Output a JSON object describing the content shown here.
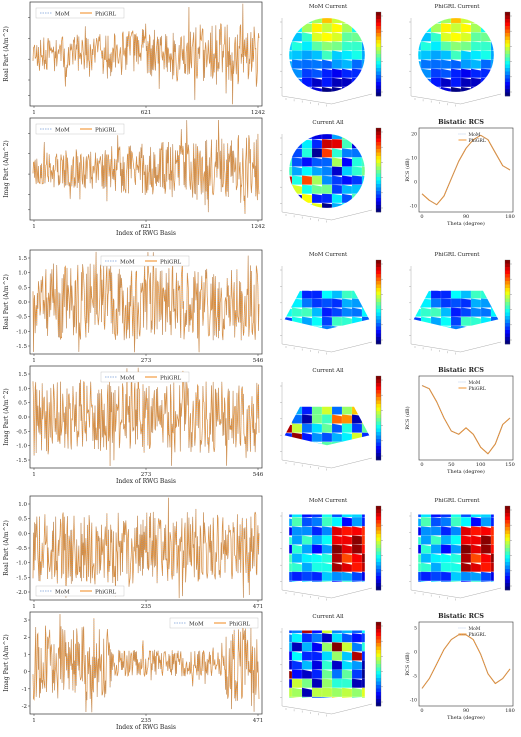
{
  "groups": [
    {
      "name": "sphere",
      "real_panel": {
        "ylabel": "Real Part (A/m^2)",
        "xticks": [
          "1",
          "621",
          "1242"
        ],
        "legend": [
          "MoM",
          "PhiGRL"
        ],
        "legend_pos": "top-left",
        "seed": 11,
        "amp": 0.75,
        "envelope": "growing"
      },
      "imag_panel": {
        "ylabel": "Imag Part (A/m^2)",
        "xticks": [
          "1",
          "621",
          "1242"
        ],
        "xlabel": "Index of RWG Basis",
        "legend": [
          "MoM",
          "PhiGRL"
        ],
        "legend_pos": "top-left",
        "seed": 23,
        "amp": 0.8,
        "envelope": "growing"
      },
      "mom_current_title": "MoM Current",
      "phigrl_current_title": "PhiGRL Current",
      "current_all_title": "Current All",
      "shape": "sphere",
      "rcs": {
        "title": "Bistatic RCS",
        "ylabel": "RCS (dB)",
        "xlabel": "Theta (degree)",
        "xticks": [
          "0",
          "90",
          "180"
        ],
        "yticks": [
          "-10",
          "0",
          "10",
          "20"
        ],
        "legend": [
          "MoM",
          "PhiGRL"
        ],
        "curve": [
          [
            0,
            -5
          ],
          [
            15,
            -8
          ],
          [
            30,
            -10
          ],
          [
            45,
            -6
          ],
          [
            60,
            2
          ],
          [
            75,
            10
          ],
          [
            90,
            16
          ],
          [
            105,
            20
          ],
          [
            120,
            22
          ],
          [
            135,
            20
          ],
          [
            150,
            14
          ],
          [
            165,
            8
          ],
          [
            180,
            6
          ]
        ],
        "ylim": [
          -12,
          24
        ]
      }
    },
    {
      "name": "frustum",
      "real_panel": {
        "ylabel": "Real Part (A/m^2)",
        "yticks": [
          "1.5",
          "1.0",
          "0.5",
          "0.0",
          "-0.5",
          "-1.0",
          "-1.5"
        ],
        "xticks": [
          "1",
          "273",
          "546"
        ],
        "legend": [
          "MoM",
          "PhiGRL"
        ],
        "legend_pos": "top-center",
        "seed": 37,
        "amp": 0.85,
        "envelope": "flat"
      },
      "imag_panel": {
        "ylabel": "Imag Part (A/m^2)",
        "yticks": [
          "1.5",
          "1.0",
          "0.5",
          "0.0",
          "-0.5",
          "-1.0",
          "-1.5"
        ],
        "xticks": [
          "1",
          "273",
          "546"
        ],
        "xlabel": "Index of RWG Basis",
        "legend": [
          "MoM",
          "PhiGRL"
        ],
        "legend_pos": "top-center",
        "seed": 41,
        "amp": 0.8,
        "envelope": "flat"
      },
      "mom_current_title": "MoM Current",
      "phigrl_current_title": "PhiGRL Current",
      "current_all_title": "Current All",
      "shape": "frustum",
      "rcs": {
        "title": "Bistatic RCS",
        "ylabel": "RCS (dB)",
        "xlabel": "Theta (degree)",
        "xticks": [
          "0",
          "50",
          "100",
          "150"
        ],
        "yticks": [],
        "legend": [
          "MoM",
          "PhiGRL"
        ],
        "curve": [
          [
            0,
            6
          ],
          [
            15,
            5.5
          ],
          [
            30,
            3.5
          ],
          [
            45,
            1
          ],
          [
            60,
            -1
          ],
          [
            75,
            -1.5
          ],
          [
            90,
            -0.5
          ],
          [
            105,
            -1.5
          ],
          [
            120,
            -3.5
          ],
          [
            135,
            -4.5
          ],
          [
            150,
            -3
          ],
          [
            165,
            0
          ],
          [
            180,
            1
          ]
        ],
        "ylim": [
          -5,
          7
        ]
      }
    },
    {
      "name": "cube",
      "real_panel": {
        "ylabel": "Real Part (A/m^2)",
        "yticks": [
          "1.0",
          "0.5",
          "0.0",
          "-0.5",
          "-1.0",
          "-1.5",
          "-2.0"
        ],
        "xticks": [
          "1",
          "235",
          "471"
        ],
        "legend": [
          "MoM",
          "PhiGRL"
        ],
        "legend_pos": "bottom-left",
        "seed": 53,
        "amp": 0.8,
        "envelope": "flat"
      },
      "imag_panel": {
        "ylabel": "Imag Part (A/m^2)",
        "yticks": [
          "3",
          "2",
          "1",
          "0",
          "-1",
          "-2"
        ],
        "xticks": [
          "1",
          "235",
          "471"
        ],
        "xlabel": "Index of RWG Basis",
        "legend": [
          "MoM",
          "PhiGRL"
        ],
        "legend_pos": "top-right",
        "seed": 67,
        "amp": 0.85,
        "envelope": "dip"
      },
      "mom_current_title": "MoM Current",
      "phigrl_current_title": "PhiGRL Current",
      "current_all_title": "Current All",
      "shape": "cube",
      "rcs": {
        "title": "Bistatic RCS",
        "ylabel": "RCS (dB)",
        "xlabel": "Theta (degree)",
        "xticks": [
          "0",
          "90",
          "180"
        ],
        "yticks": [
          "-10",
          "-5",
          "0",
          "5"
        ],
        "legend": [
          "MoM",
          "PhiGRL"
        ],
        "curve": [
          [
            0,
            -5
          ],
          [
            15,
            -3
          ],
          [
            30,
            0
          ],
          [
            45,
            3
          ],
          [
            60,
            5
          ],
          [
            75,
            6
          ],
          [
            90,
            6
          ],
          [
            105,
            5
          ],
          [
            120,
            2
          ],
          [
            135,
            -2
          ],
          [
            150,
            -4
          ],
          [
            165,
            -3
          ],
          [
            180,
            -1
          ]
        ],
        "ylim": [
          -8,
          8
        ]
      }
    }
  ],
  "colors": {
    "mom": "#7a9fd6",
    "phigrl": "#f08a1c",
    "axis": "#333333",
    "frame": "#888888"
  },
  "chart_data": [
    {
      "type": "line",
      "title": "Bistatic RCS",
      "xlabel": "Theta (degree)",
      "ylabel": "RCS (dB)",
      "series": [
        {
          "name": "MoM",
          "x": [
            0,
            15,
            30,
            45,
            60,
            75,
            90,
            105,
            120,
            135,
            150,
            165,
            180
          ],
          "values": [
            -5,
            -8,
            -10,
            -6,
            2,
            10,
            16,
            20,
            22,
            20,
            14,
            8,
            6
          ]
        },
        {
          "name": "PhiGRL",
          "x": [
            0,
            15,
            30,
            45,
            60,
            75,
            90,
            105,
            120,
            135,
            150,
            165,
            180
          ],
          "values": [
            -5,
            -8,
            -10,
            -6,
            2,
            10,
            16,
            20,
            22,
            20,
            14,
            8,
            6
          ]
        }
      ]
    },
    {
      "type": "line",
      "title": "Bistatic RCS",
      "xlabel": "Theta (degree)",
      "ylabel": "RCS (dB)",
      "series": [
        {
          "name": "MoM",
          "x": [
            0,
            15,
            30,
            45,
            60,
            75,
            90,
            105,
            120,
            135,
            150,
            165,
            180
          ],
          "values": [
            6,
            5.5,
            3.5,
            1,
            -1,
            -1.5,
            -0.5,
            -1.5,
            -3.5,
            -4.5,
            -3,
            0,
            1
          ]
        },
        {
          "name": "PhiGRL",
          "x": [
            0,
            15,
            30,
            45,
            60,
            75,
            90,
            105,
            120,
            135,
            150,
            165,
            180
          ],
          "values": [
            6,
            5.5,
            3.5,
            1,
            -1,
            -1.5,
            -0.5,
            -1.5,
            -3.5,
            -4.5,
            -3,
            0,
            1
          ]
        }
      ]
    },
    {
      "type": "line",
      "title": "Bistatic RCS",
      "xlabel": "Theta (degree)",
      "ylabel": "RCS (dB)",
      "series": [
        {
          "name": "MoM",
          "x": [
            0,
            15,
            30,
            45,
            60,
            75,
            90,
            105,
            120,
            135,
            150,
            165,
            180
          ],
          "values": [
            -5,
            -3,
            0,
            3,
            5,
            6,
            6,
            5,
            2,
            -2,
            -4,
            -3,
            -1
          ]
        },
        {
          "name": "PhiGRL",
          "x": [
            0,
            15,
            30,
            45,
            60,
            75,
            90,
            105,
            120,
            135,
            150,
            165,
            180
          ],
          "values": [
            -5,
            -3,
            0,
            3,
            5,
            6,
            6,
            5,
            2,
            -2,
            -4,
            -3,
            -1
          ]
        }
      ]
    }
  ]
}
